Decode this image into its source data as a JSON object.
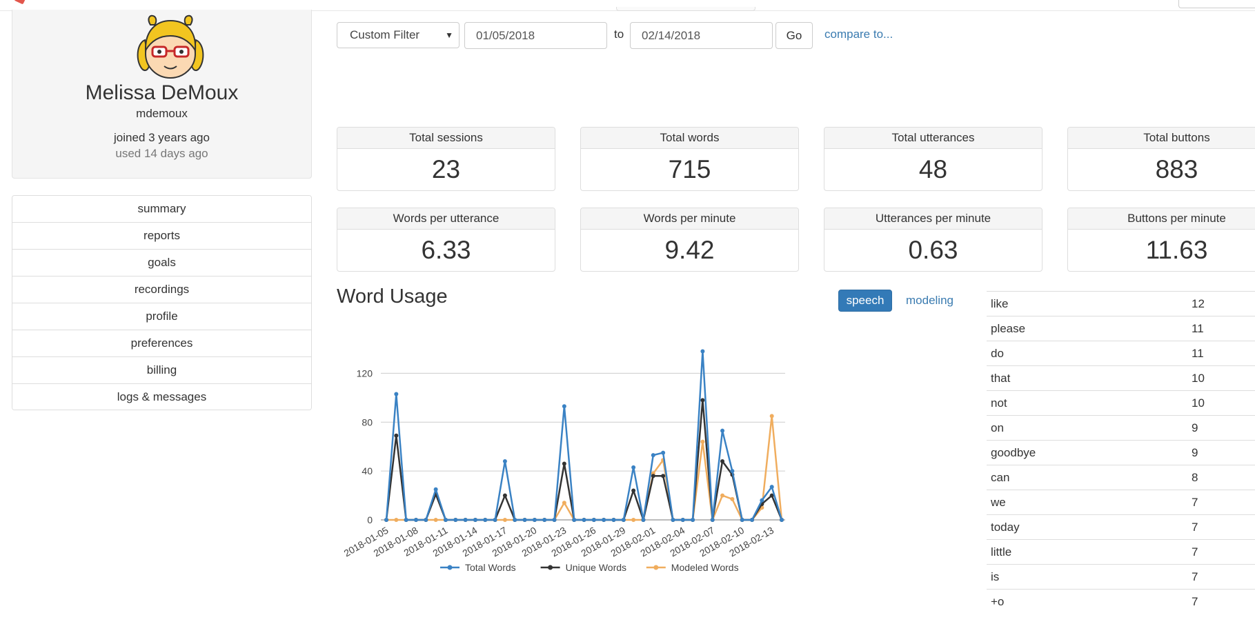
{
  "profile": {
    "name": "Melissa DeMoux",
    "username": "mdemoux",
    "joined": "joined 3 years ago",
    "used": "used 14 days ago"
  },
  "sidenav": {
    "items": [
      {
        "label": "summary"
      },
      {
        "label": "reports"
      },
      {
        "label": "goals"
      },
      {
        "label": "recordings"
      },
      {
        "label": "profile"
      },
      {
        "label": "preferences"
      },
      {
        "label": "billing"
      },
      {
        "label": "logs & messages"
      }
    ]
  },
  "filter": {
    "select_value": "Custom Filter",
    "start_date": "01/05/2018",
    "to_label": "to",
    "end_date": "02/14/2018",
    "go_label": "Go",
    "compare_label": "compare to..."
  },
  "stats": [
    {
      "label": "Total sessions",
      "value": "23"
    },
    {
      "label": "Total words",
      "value": "715"
    },
    {
      "label": "Total utterances",
      "value": "48"
    },
    {
      "label": "Total buttons",
      "value": "883"
    },
    {
      "label": "Words per utterance",
      "value": "6.33"
    },
    {
      "label": "Words per minute",
      "value": "9.42"
    },
    {
      "label": "Utterances per minute",
      "value": "0.63"
    },
    {
      "label": "Buttons per minute",
      "value": "11.63"
    }
  ],
  "word_usage": {
    "title": "Word Usage",
    "speech_label": "speech",
    "modeling_label": "modeling"
  },
  "colors": {
    "total": "#3a82c4",
    "unique": "#333333",
    "modeled": "#f0ad5e",
    "accent": "#337ab7"
  },
  "chart_data": {
    "type": "line",
    "x": [
      "2018-01-05",
      "2018-01-06",
      "2018-01-07",
      "2018-01-08",
      "2018-01-09",
      "2018-01-10",
      "2018-01-11",
      "2018-01-12",
      "2018-01-13",
      "2018-01-14",
      "2018-01-15",
      "2018-01-16",
      "2018-01-17",
      "2018-01-18",
      "2018-01-19",
      "2018-01-20",
      "2018-01-21",
      "2018-01-22",
      "2018-01-23",
      "2018-01-24",
      "2018-01-25",
      "2018-01-26",
      "2018-01-27",
      "2018-01-28",
      "2018-01-29",
      "2018-01-30",
      "2018-01-31",
      "2018-02-01",
      "2018-02-02",
      "2018-02-03",
      "2018-02-04",
      "2018-02-05",
      "2018-02-06",
      "2018-02-07",
      "2018-02-08",
      "2018-02-09",
      "2018-02-10",
      "2018-02-11",
      "2018-02-12",
      "2018-02-13",
      "2018-02-14"
    ],
    "x_tick_labels": [
      "2018-01-05",
      "2018-01-08",
      "2018-01-11",
      "2018-01-14",
      "2018-01-17",
      "2018-01-20",
      "2018-01-23",
      "2018-01-26",
      "2018-01-29",
      "2018-02-01",
      "2018-02-04",
      "2018-02-07",
      "2018-02-10",
      "2018-02-13"
    ],
    "series": [
      {
        "name": "Total Words",
        "values": [
          0,
          103,
          0,
          0,
          0,
          25,
          0,
          0,
          0,
          0,
          0,
          0,
          48,
          0,
          0,
          0,
          0,
          0,
          93,
          0,
          0,
          0,
          0,
          0,
          0,
          43,
          0,
          53,
          55,
          0,
          0,
          0,
          138,
          0,
          73,
          40,
          0,
          0,
          16,
          27,
          0
        ]
      },
      {
        "name": "Unique Words",
        "values": [
          0,
          69,
          0,
          0,
          0,
          21,
          0,
          0,
          0,
          0,
          0,
          0,
          20,
          0,
          0,
          0,
          0,
          0,
          46,
          0,
          0,
          0,
          0,
          0,
          0,
          24,
          0,
          36,
          36,
          0,
          0,
          0,
          98,
          0,
          48,
          37,
          0,
          0,
          13,
          20,
          0
        ]
      },
      {
        "name": "Modeled Words",
        "values": [
          0,
          0,
          0,
          0,
          0,
          0,
          0,
          0,
          0,
          0,
          0,
          0,
          0,
          0,
          0,
          0,
          0,
          0,
          14,
          0,
          0,
          0,
          0,
          0,
          0,
          0,
          0,
          38,
          49,
          0,
          0,
          0,
          64,
          0,
          20,
          17,
          0,
          0,
          10,
          85,
          0
        ]
      }
    ],
    "yticks": [
      0,
      40,
      80,
      120
    ],
    "ylim": [
      0,
      140
    ],
    "grid": true,
    "legend": "bottom"
  },
  "word_table": [
    {
      "word": "like",
      "count": "12"
    },
    {
      "word": "please",
      "count": "11"
    },
    {
      "word": "do",
      "count": "11"
    },
    {
      "word": "that",
      "count": "10"
    },
    {
      "word": "not",
      "count": "10"
    },
    {
      "word": "on",
      "count": "9"
    },
    {
      "word": "goodbye",
      "count": "9"
    },
    {
      "word": "can",
      "count": "8"
    },
    {
      "word": "we",
      "count": "7"
    },
    {
      "word": "today",
      "count": "7"
    },
    {
      "word": "little",
      "count": "7"
    },
    {
      "word": "is",
      "count": "7"
    },
    {
      "word": "+o",
      "count": "7"
    }
  ]
}
